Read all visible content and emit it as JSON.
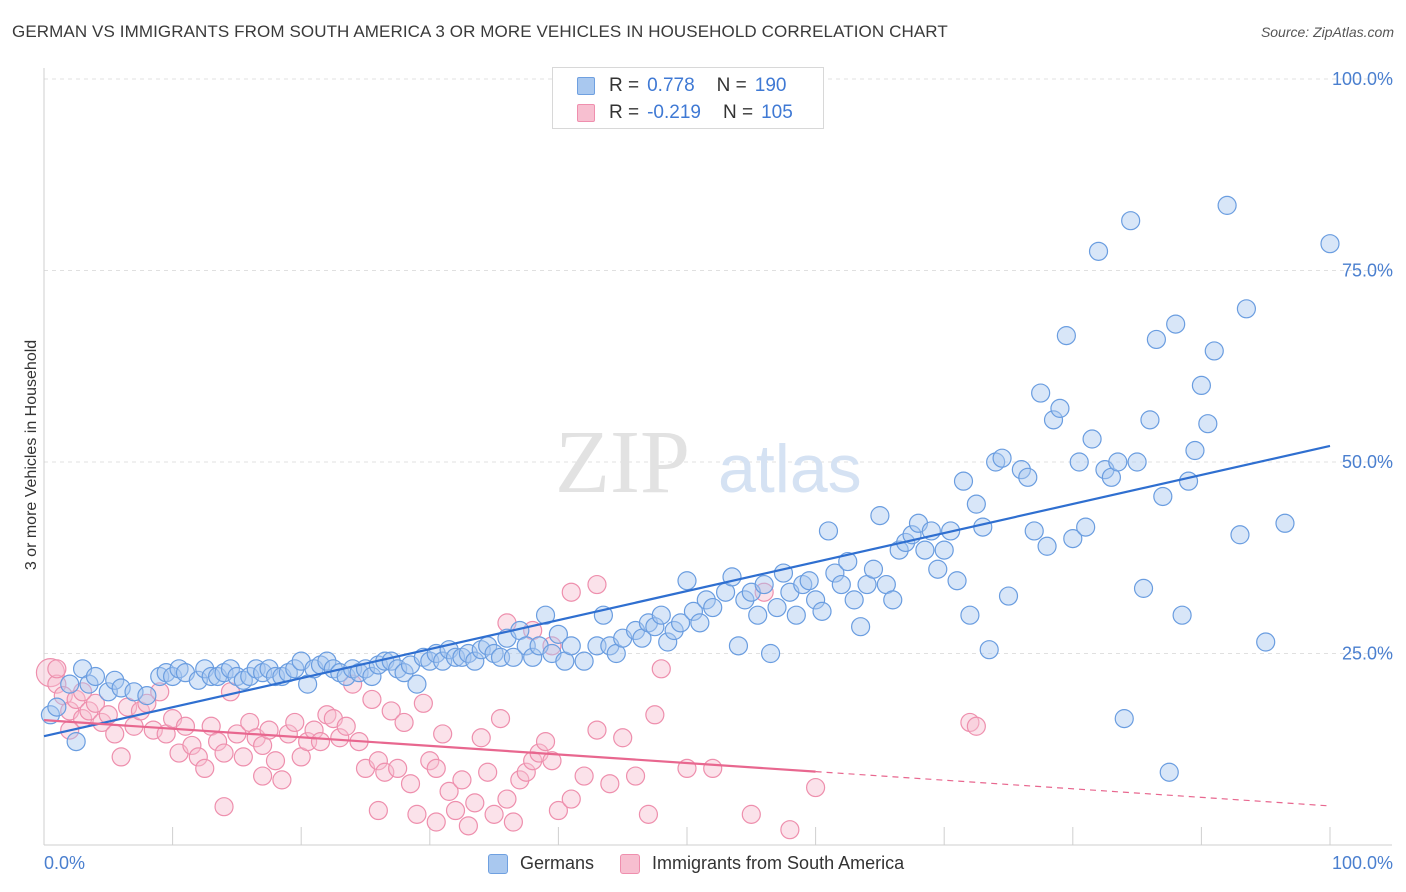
{
  "title": "GERMAN VS IMMIGRANTS FROM SOUTH AMERICA 3 OR MORE VEHICLES IN HOUSEHOLD CORRELATION CHART",
  "source": "Source: ZipAtlas.com",
  "watermark": {
    "zip": "ZIP",
    "atlas": "atlas"
  },
  "legend": {
    "r_label": "R =",
    "n_label": "N =",
    "rows": [
      {
        "r": "0.778",
        "n": "190",
        "color": "#a9c8ef",
        "border": "#6fa0e0"
      },
      {
        "r": "-0.219",
        "n": "105",
        "color": "#f7bfd0",
        "border": "#ef8fae"
      }
    ]
  },
  "bottom_legend": [
    {
      "label": "Germans",
      "color": "#a9c8ef",
      "border": "#6fa0e0"
    },
    {
      "label": "Immigrants from South America",
      "color": "#f7bfd0",
      "border": "#ef8fae"
    }
  ],
  "chart_data": {
    "type": "scatter",
    "ylabel": "3 or more Vehicles in Household",
    "xlim": [
      0,
      100
    ],
    "ylim": [
      0,
      100
    ],
    "x_tick_labels": {
      "left": "0.0%",
      "right": "100.0%"
    },
    "y_ticks": [
      {
        "value": 25,
        "label": "25.0%"
      },
      {
        "value": 50,
        "label": "50.0%"
      },
      {
        "value": 75,
        "label": "75.0%"
      },
      {
        "value": 100,
        "label": "100.0%"
      }
    ],
    "grid": "dashed horizontal",
    "series": [
      {
        "name": "Germans",
        "color": "#a9c8ef",
        "stroke": "#6a9de0",
        "trend_color": "#2f6fd0",
        "trend": {
          "x0": 0,
          "y0": 14.2,
          "x1": 100,
          "y1": 52.1,
          "dashed_from": null
        },
        "points": [
          [
            0.5,
            17
          ],
          [
            1,
            18
          ],
          [
            2,
            21
          ],
          [
            2.5,
            13.5
          ],
          [
            3,
            23
          ],
          [
            3.5,
            21
          ],
          [
            4,
            22
          ],
          [
            5,
            20
          ],
          [
            5.5,
            21.5
          ],
          [
            6,
            20.5
          ],
          [
            7,
            20
          ],
          [
            8,
            19.5
          ],
          [
            9,
            22
          ],
          [
            9.5,
            22.5
          ],
          [
            10,
            22
          ],
          [
            10.5,
            23
          ],
          [
            11,
            22.5
          ],
          [
            12,
            21.5
          ],
          [
            12.5,
            23
          ],
          [
            13,
            22
          ],
          [
            13.5,
            22
          ],
          [
            14,
            22.5
          ],
          [
            14.5,
            23
          ],
          [
            15,
            22
          ],
          [
            15.5,
            21.5
          ],
          [
            16,
            22
          ],
          [
            16.5,
            23
          ],
          [
            17,
            22.5
          ],
          [
            17.5,
            23
          ],
          [
            18,
            22
          ],
          [
            18.5,
            22
          ],
          [
            19,
            22.5
          ],
          [
            19.5,
            23
          ],
          [
            20,
            24
          ],
          [
            20.5,
            21
          ],
          [
            21,
            23
          ],
          [
            21.5,
            23.5
          ],
          [
            22,
            24
          ],
          [
            22.5,
            23
          ],
          [
            23,
            22.5
          ],
          [
            23.5,
            22
          ],
          [
            24,
            23
          ],
          [
            24.5,
            22.5
          ],
          [
            25,
            23
          ],
          [
            25.5,
            22
          ],
          [
            26,
            23.5
          ],
          [
            26.5,
            24
          ],
          [
            27,
            24
          ],
          [
            27.5,
            23
          ],
          [
            28,
            22.5
          ],
          [
            28.5,
            23.5
          ],
          [
            29,
            21
          ],
          [
            29.5,
            24.5
          ],
          [
            30,
            24
          ],
          [
            30.5,
            25
          ],
          [
            31,
            24
          ],
          [
            31.5,
            25.5
          ],
          [
            32,
            24.5
          ],
          [
            32.5,
            24.5
          ],
          [
            33,
            25
          ],
          [
            33.5,
            24
          ],
          [
            34,
            25.5
          ],
          [
            34.5,
            26
          ],
          [
            35,
            25
          ],
          [
            35.5,
            24.5
          ],
          [
            36,
            27
          ],
          [
            36.5,
            24.5
          ],
          [
            37,
            28
          ],
          [
            37.5,
            26
          ],
          [
            38,
            24.5
          ],
          [
            38.5,
            26
          ],
          [
            39,
            30
          ],
          [
            39.5,
            25
          ],
          [
            40,
            27.5
          ],
          [
            40.5,
            24
          ],
          [
            41,
            26
          ],
          [
            42,
            24
          ],
          [
            43,
            26
          ],
          [
            43.5,
            30
          ],
          [
            44,
            26
          ],
          [
            44.5,
            25
          ],
          [
            45,
            27
          ],
          [
            46,
            28
          ],
          [
            46.5,
            27
          ],
          [
            47,
            29
          ],
          [
            47.5,
            28.5
          ],
          [
            48,
            30
          ],
          [
            48.5,
            26.5
          ],
          [
            49,
            28
          ],
          [
            49.5,
            29
          ],
          [
            50,
            34.5
          ],
          [
            50.5,
            30.5
          ],
          [
            51,
            29
          ],
          [
            51.5,
            32
          ],
          [
            52,
            31
          ],
          [
            53,
            33
          ],
          [
            53.5,
            35
          ],
          [
            54,
            26
          ],
          [
            54.5,
            32
          ],
          [
            55,
            33
          ],
          [
            55.5,
            30
          ],
          [
            56,
            34
          ],
          [
            56.5,
            25
          ],
          [
            57,
            31
          ],
          [
            57.5,
            35.5
          ],
          [
            58,
            33
          ],
          [
            58.5,
            30
          ],
          [
            59,
            34
          ],
          [
            59.5,
            34.5
          ],
          [
            60,
            32
          ],
          [
            60.5,
            30.5
          ],
          [
            61,
            41
          ],
          [
            61.5,
            35.5
          ],
          [
            62,
            34
          ],
          [
            62.5,
            37
          ],
          [
            63,
            32
          ],
          [
            63.5,
            28.5
          ],
          [
            64,
            34
          ],
          [
            64.5,
            36
          ],
          [
            65,
            43
          ],
          [
            65.5,
            34
          ],
          [
            66,
            32
          ],
          [
            66.5,
            38.5
          ],
          [
            67,
            39.5
          ],
          [
            67.5,
            40.5
          ],
          [
            68,
            42
          ],
          [
            68.5,
            38.5
          ],
          [
            69,
            41
          ],
          [
            69.5,
            36
          ],
          [
            70,
            38.5
          ],
          [
            70.5,
            41
          ],
          [
            71,
            34.5
          ],
          [
            71.5,
            47.5
          ],
          [
            72,
            30
          ],
          [
            72.5,
            44.5
          ],
          [
            73,
            41.5
          ],
          [
            73.5,
            25.5
          ],
          [
            74,
            50
          ],
          [
            74.5,
            50.5
          ],
          [
            75,
            32.5
          ],
          [
            76,
            49
          ],
          [
            76.5,
            48
          ],
          [
            77,
            41
          ],
          [
            77.5,
            59
          ],
          [
            78,
            39
          ],
          [
            78.5,
            55.5
          ],
          [
            79,
            57
          ],
          [
            79.5,
            66.5
          ],
          [
            80,
            40
          ],
          [
            80.5,
            50
          ],
          [
            81,
            41.5
          ],
          [
            81.5,
            53
          ],
          [
            82,
            77.5
          ],
          [
            82.5,
            49
          ],
          [
            83,
            48
          ],
          [
            83.5,
            50
          ],
          [
            84,
            16.5
          ],
          [
            84.5,
            81.5
          ],
          [
            85,
            50
          ],
          [
            85.5,
            33.5
          ],
          [
            86,
            55.5
          ],
          [
            86.5,
            66
          ],
          [
            87,
            45.5
          ],
          [
            87.5,
            9.5
          ],
          [
            88,
            68
          ],
          [
            88.5,
            30
          ],
          [
            89,
            47.5
          ],
          [
            89.5,
            51.5
          ],
          [
            90,
            60
          ],
          [
            90.5,
            55
          ],
          [
            91,
            64.5
          ],
          [
            92,
            83.5
          ],
          [
            93,
            40.5
          ],
          [
            93.5,
            70
          ],
          [
            95,
            26.5
          ],
          [
            96.5,
            42
          ],
          [
            100,
            78.5
          ]
        ]
      },
      {
        "name": "Immigrants from South America",
        "color": "#f7bfd0",
        "stroke": "#ee8fad",
        "trend_color": "#e8678f",
        "trend": {
          "x0": 0,
          "y0": 16.3,
          "x1": 100,
          "y1": 5.1,
          "dashed_from": 60
        },
        "points": [
          [
            0.5,
            22.5
          ],
          [
            1,
            21
          ],
          [
            1.5,
            19.5
          ],
          [
            2,
            17.5
          ],
          [
            2.5,
            19
          ],
          [
            3,
            16.5
          ],
          [
            3.5,
            17.5
          ],
          [
            4,
            18.5
          ],
          [
            4.5,
            16
          ],
          [
            5,
            17
          ],
          [
            5.5,
            14.5
          ],
          [
            6,
            11.5
          ],
          [
            6.5,
            18
          ],
          [
            7,
            15.5
          ],
          [
            7.5,
            17.5
          ],
          [
            8,
            18.5
          ],
          [
            8.5,
            15
          ],
          [
            9,
            20
          ],
          [
            9.5,
            14.5
          ],
          [
            10,
            16.5
          ],
          [
            10.5,
            12
          ],
          [
            11,
            15.5
          ],
          [
            11.5,
            13
          ],
          [
            12,
            11.5
          ],
          [
            12.5,
            10
          ],
          [
            13,
            15.5
          ],
          [
            13.5,
            13.5
          ],
          [
            14,
            12
          ],
          [
            14.5,
            20
          ],
          [
            15,
            14.5
          ],
          [
            15.5,
            11.5
          ],
          [
            16,
            16
          ],
          [
            16.5,
            14
          ],
          [
            17,
            13
          ],
          [
            17.5,
            15
          ],
          [
            18,
            11
          ],
          [
            18.5,
            8.5
          ],
          [
            19,
            14.5
          ],
          [
            19.5,
            16
          ],
          [
            20,
            11.5
          ],
          [
            20.5,
            13.5
          ],
          [
            21,
            15
          ],
          [
            21.5,
            13.5
          ],
          [
            22,
            17
          ],
          [
            22.5,
            16.5
          ],
          [
            23,
            14
          ],
          [
            23.5,
            15.5
          ],
          [
            24,
            21
          ],
          [
            24.5,
            13.5
          ],
          [
            25,
            10
          ],
          [
            25.5,
            19
          ],
          [
            26,
            11
          ],
          [
            26.5,
            9.5
          ],
          [
            27,
            17.5
          ],
          [
            27.5,
            10
          ],
          [
            28,
            16
          ],
          [
            28.5,
            8
          ],
          [
            29,
            4
          ],
          [
            29.5,
            18.5
          ],
          [
            30,
            11
          ],
          [
            30.5,
            10
          ],
          [
            31,
            14.5
          ],
          [
            31.5,
            7
          ],
          [
            32,
            4.5
          ],
          [
            32.5,
            8.5
          ],
          [
            33,
            2.5
          ],
          [
            33.5,
            5.5
          ],
          [
            34,
            14
          ],
          [
            34.5,
            9.5
          ],
          [
            35,
            4
          ],
          [
            35.5,
            16.5
          ],
          [
            36,
            6
          ],
          [
            36.5,
            3
          ],
          [
            37,
            8.5
          ],
          [
            37.5,
            9.5
          ],
          [
            38,
            11
          ],
          [
            38.5,
            12
          ],
          [
            39,
            13.5
          ],
          [
            39.5,
            11
          ],
          [
            40,
            4.5
          ],
          [
            41,
            6
          ],
          [
            42,
            9
          ],
          [
            43,
            15
          ],
          [
            44,
            8
          ],
          [
            45,
            14
          ],
          [
            46,
            9
          ],
          [
            47,
            4
          ],
          [
            47.5,
            17
          ],
          [
            48,
            23
          ],
          [
            50,
            10
          ],
          [
            52,
            10
          ],
          [
            55,
            4
          ],
          [
            56,
            33
          ],
          [
            58,
            2
          ],
          [
            60,
            7.5
          ],
          [
            72,
            16
          ],
          [
            72.5,
            15.5
          ],
          [
            1,
            23
          ],
          [
            2,
            15
          ],
          [
            3,
            20
          ],
          [
            14,
            5
          ],
          [
            17,
            9
          ],
          [
            26,
            4.5
          ],
          [
            30.5,
            3
          ],
          [
            36,
            29
          ],
          [
            38,
            28
          ],
          [
            39.5,
            26
          ],
          [
            41,
            33
          ],
          [
            43,
            34
          ]
        ]
      }
    ]
  }
}
